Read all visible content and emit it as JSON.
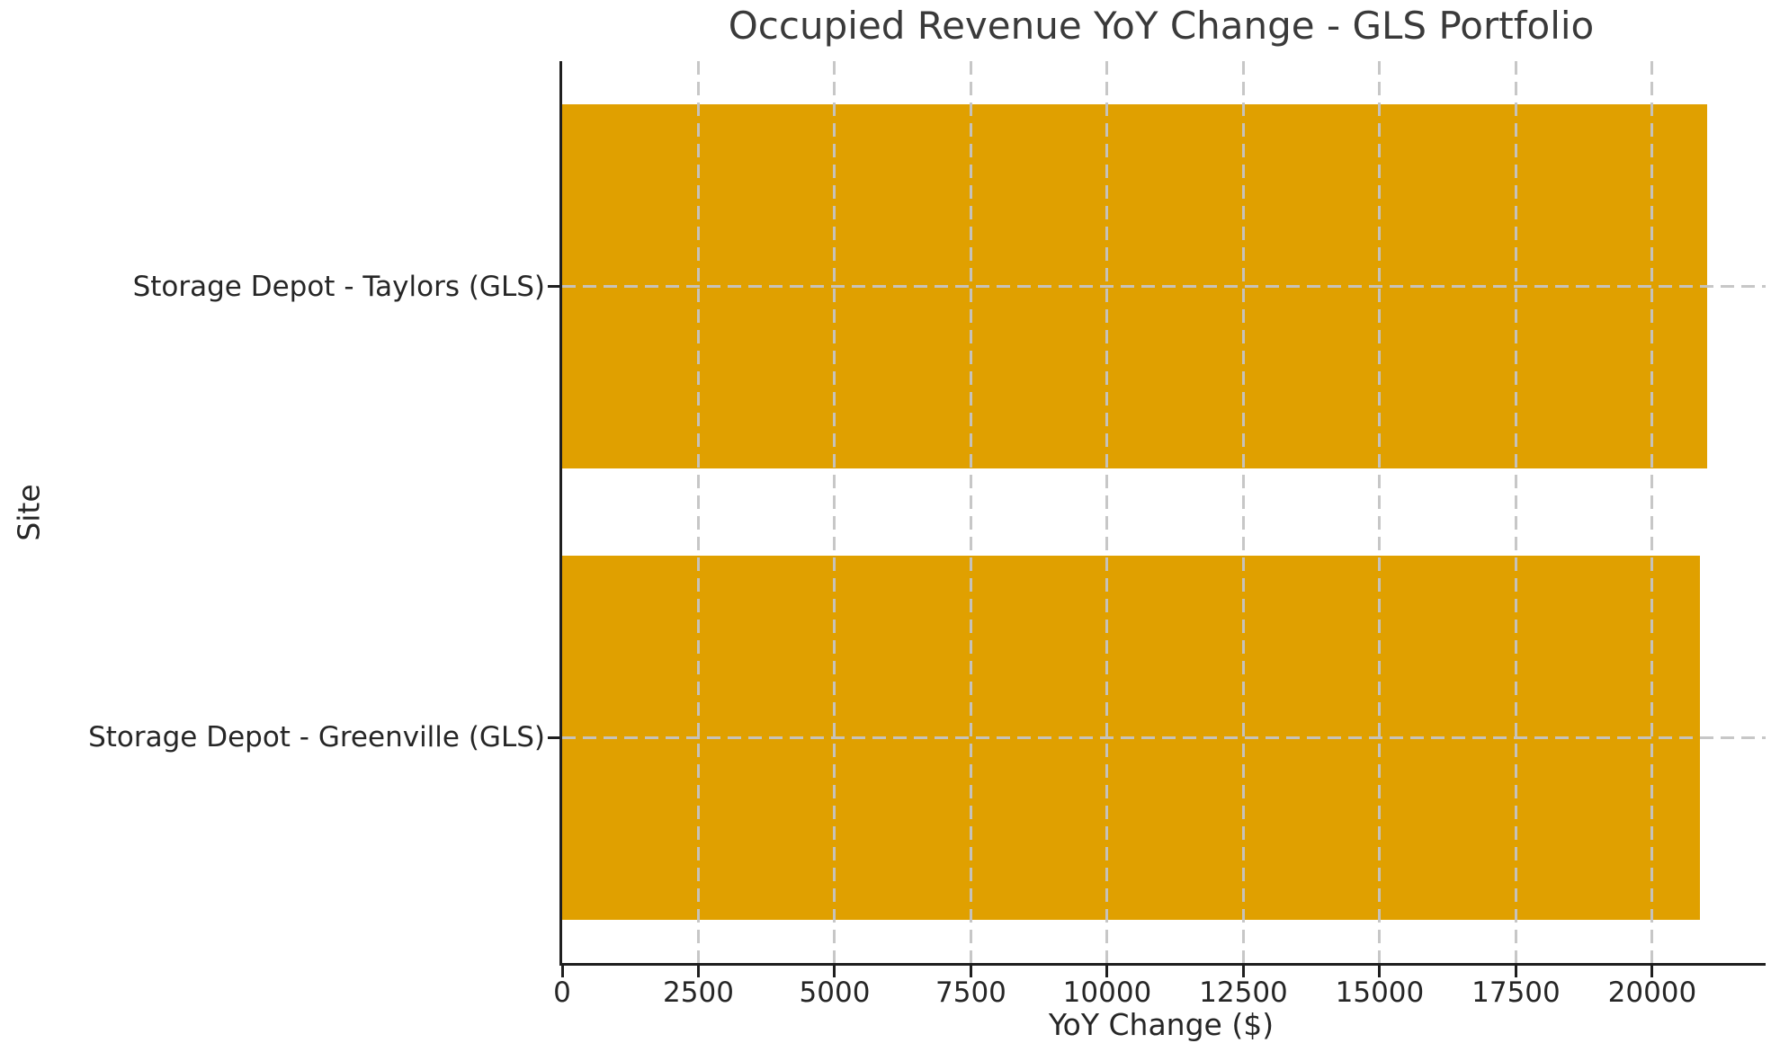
{
  "chart_data": {
    "type": "bar",
    "orientation": "horizontal",
    "title": "Occupied Revenue YoY Change - GLS Portfolio",
    "xlabel": "YoY Change ($)",
    "ylabel": "Site",
    "categories": [
      "Storage Depot - Taylors (GLS)",
      "Storage Depot - Greenville (GLS)"
    ],
    "values": [
      21000,
      20880
    ],
    "x_ticks": [
      0,
      2500,
      5000,
      7500,
      10000,
      12500,
      15000,
      17500,
      20000
    ],
    "x_tick_labels": [
      "0",
      "2500",
      "5000",
      "7500",
      "10000",
      "12500",
      "15000",
      "17500",
      "20000"
    ],
    "xlim": [
      0,
      22080
    ],
    "grid": "dashed",
    "legend": "none",
    "bar_color": "#E0A000",
    "grid_color": "#c4c4c4",
    "spine_color": "#1f1f1f",
    "title_color": "#3a3a3a",
    "tick_text_color": "#262626"
  }
}
